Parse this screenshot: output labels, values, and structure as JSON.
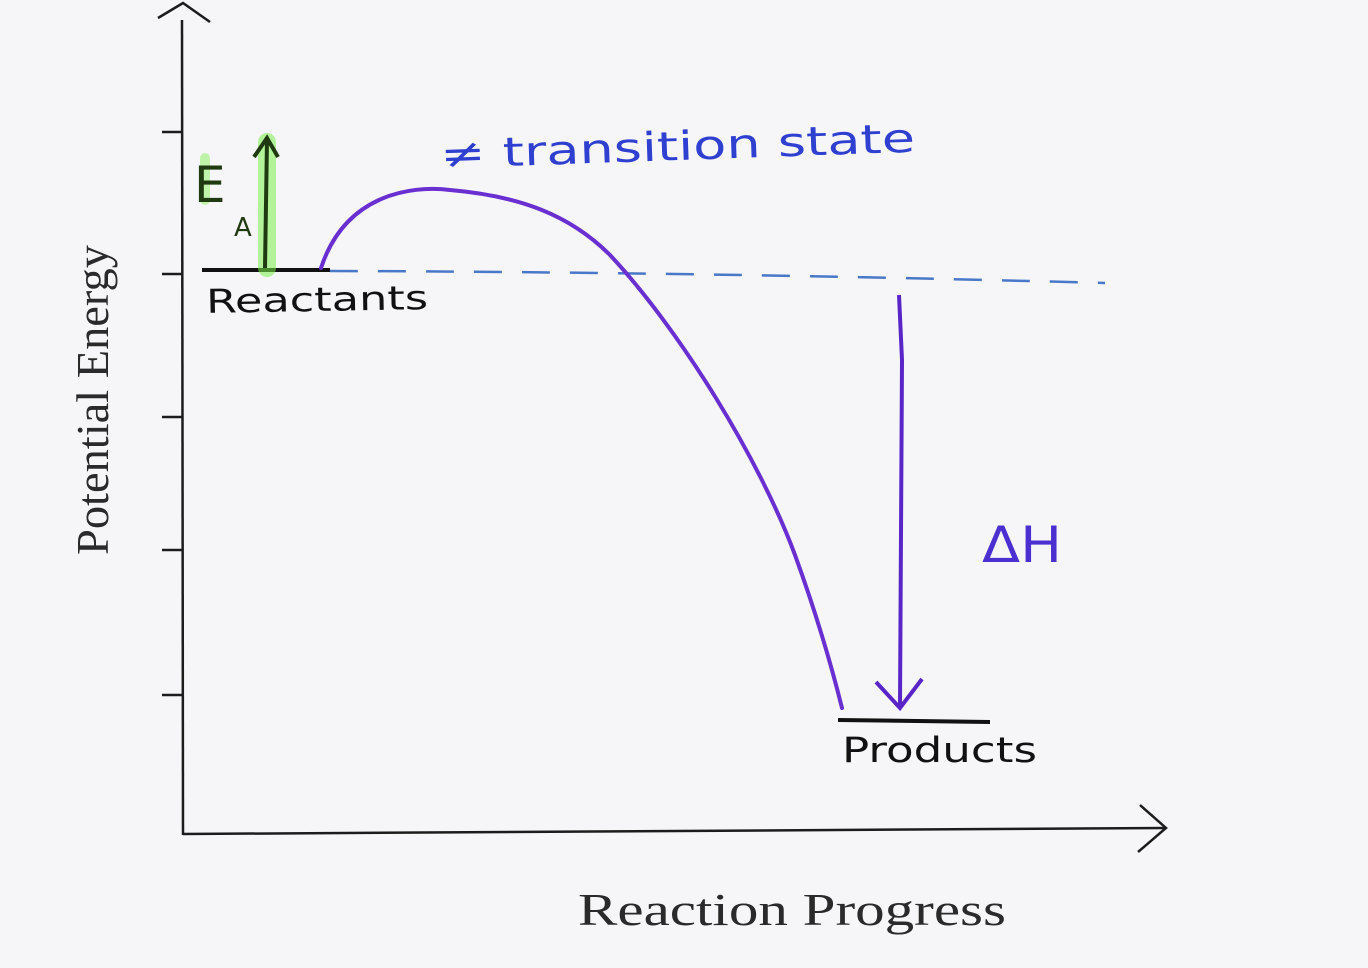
{
  "axes": {
    "x_label": "Reaction Progress",
    "y_label": "Potential Energy"
  },
  "annotations": {
    "activation_energy_main": "E",
    "activation_energy_sub": "A",
    "transition_state": "≠ transition state",
    "reactants": "Reactants",
    "products": "Products",
    "enthalpy_change": "ΔH"
  },
  "colors": {
    "axis": "#1c1c1c",
    "curve": "#6a2fd0",
    "dashed_reference": "#4a78c8",
    "activation_arrow": "#1f3a10",
    "activation_highlight": "#7af04a",
    "enthalpy_arrow": "#5a25c8",
    "transition_label": "#2f3fd0",
    "enthalpy_label": "#4b2fd0"
  }
}
